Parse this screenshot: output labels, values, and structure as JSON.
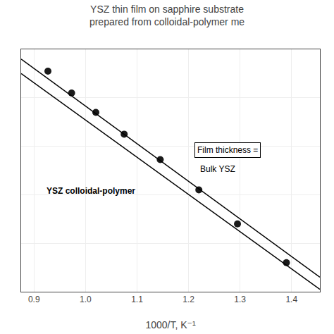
{
  "chart_data": {
    "type": "scatter",
    "title": "YSZ thin film on sapphire substrate\nprepared from colloidal-polymer me",
    "xlabel": "1000/T, K⁻¹",
    "xlim": [
      0.875,
      1.455
    ],
    "ylim": [
      0.0,
      1.0
    ],
    "xticks": [
      0.9,
      {
        "value": 1.0,
        "label": "1.0"
      },
      1.1,
      1.2,
      1.3,
      1.4
    ],
    "yticks": [
      0.0,
      0.2,
      0.4,
      0.6,
      0.8,
      1.0
    ],
    "tick_labels": "x",
    "grid": true,
    "series": [
      {
        "type": "scatter",
        "color": "#1a1a1a",
        "x": [
          0.927,
          0.973,
          1.02,
          1.075,
          1.145,
          1.22,
          1.295,
          1.39
        ],
        "values": [
          0.91,
          0.82,
          0.74,
          0.65,
          0.545,
          0.42,
          0.28,
          0.12
        ]
      },
      {
        "type": "line",
        "color": "#000000",
        "x": [
          0.875,
          1.455
        ],
        "values": [
          0.96,
          0.06
        ]
      },
      {
        "type": "line",
        "color": "#000000",
        "x": [
          0.875,
          1.455
        ],
        "values": [
          0.9,
          0.01
        ]
      }
    ],
    "annotations": [
      "Bulk YSZ",
      "YSZ colloidal-polymer",
      "Film thickness ="
    ]
  }
}
